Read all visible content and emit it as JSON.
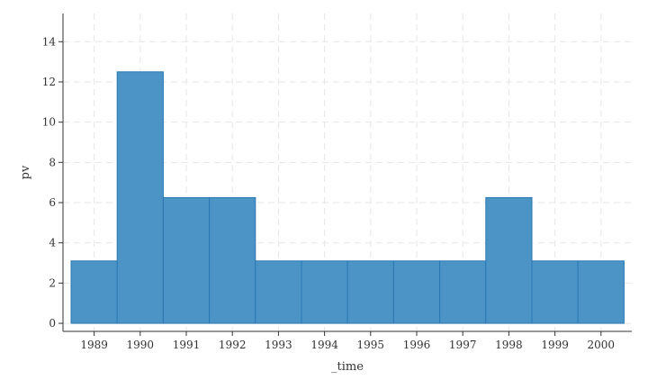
{
  "chart_data": {
    "type": "bar",
    "title": "",
    "xlabel": "_time",
    "ylabel": "pv",
    "categories": [
      "1989",
      "1990",
      "1991",
      "1992",
      "1993",
      "1994",
      "1995",
      "1996",
      "1997",
      "1998",
      "1999",
      "2000"
    ],
    "values": [
      3.1,
      12.5,
      6.25,
      6.25,
      3.1,
      3.1,
      3.1,
      3.1,
      3.1,
      6.25,
      3.1,
      3.1
    ],
    "ylim": [
      -0.4,
      15.4
    ],
    "yticks": [
      0,
      2,
      4,
      6,
      8,
      10,
      12,
      14
    ],
    "grid": true,
    "bar_color": "#4c93c6",
    "bar_edge_color": "#2a78b3",
    "grid_color": "#e6e6e6"
  }
}
